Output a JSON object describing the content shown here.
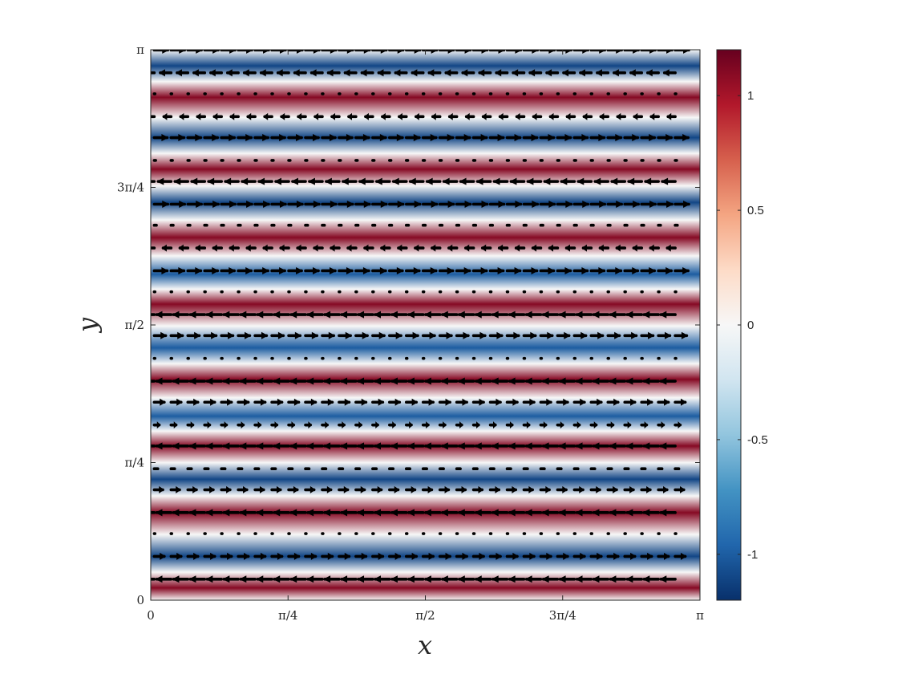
{
  "chart_data": {
    "type": "heatmap",
    "overlay": "quiver",
    "title": "",
    "xlabel": "x",
    "ylabel": "y",
    "xlim": [
      0,
      3.14159
    ],
    "ylim": [
      0,
      3.14159
    ],
    "x_ticks": [
      {
        "value": 0,
        "label": "0"
      },
      {
        "value": 0.7854,
        "label": "π/4"
      },
      {
        "value": 1.5708,
        "label": "π/2"
      },
      {
        "value": 2.3562,
        "label": "3π/4"
      },
      {
        "value": 3.14159,
        "label": "π"
      }
    ],
    "y_ticks": [
      {
        "value": 0,
        "label": "0"
      },
      {
        "value": 0.7854,
        "label": "π/4"
      },
      {
        "value": 1.5708,
        "label": "π/2"
      },
      {
        "value": 2.3562,
        "label": "3π/4"
      },
      {
        "value": 3.14159,
        "label": "π"
      }
    ],
    "colorbar": {
      "limits": [
        -1.2,
        1.2
      ],
      "ticks": [
        {
          "value": -1,
          "label": "-1"
        },
        {
          "value": -0.5,
          "label": "-0.5"
        },
        {
          "value": 0,
          "label": "0"
        },
        {
          "value": 0.5,
          "label": "0.5"
        },
        {
          "value": 1,
          "label": "1"
        }
      ],
      "colormap": [
        "#08306b",
        "#2166ac",
        "#4393c3",
        "#92c5de",
        "#d1e5f0",
        "#f7f7f7",
        "#fddbc7",
        "#f4a582",
        "#d6604d",
        "#b2182b",
        "#67001f"
      ]
    },
    "field": {
      "varies_along": "y",
      "profile": [
        {
          "y": 0.07,
          "value": 1.1
        },
        {
          "y": 0.25,
          "value": -1.1
        },
        {
          "y": 0.5,
          "value": 1.1
        },
        {
          "y": 0.69,
          "value": -1.1
        },
        {
          "y": 0.88,
          "value": 1.1
        },
        {
          "y": 1.05,
          "value": -1.0
        },
        {
          "y": 1.26,
          "value": 1.1
        },
        {
          "y": 1.44,
          "value": -1.0
        },
        {
          "y": 1.69,
          "value": 1.1
        },
        {
          "y": 1.86,
          "value": -1.0
        },
        {
          "y": 2.07,
          "value": 1.1
        },
        {
          "y": 2.27,
          "value": -1.1
        },
        {
          "y": 2.46,
          "value": 1.1
        },
        {
          "y": 2.64,
          "value": -1.1
        },
        {
          "y": 2.87,
          "value": 1.1
        },
        {
          "y": 3.05,
          "value": -1.1
        }
      ]
    },
    "quiver": {
      "x_start": 0.02,
      "x_end": 3.0,
      "columns": 32,
      "rows": [
        {
          "y": 0.12,
          "u": -1.0
        },
        {
          "y": 0.25,
          "u": 0.7
        },
        {
          "y": 0.38,
          "u": 0.05
        },
        {
          "y": 0.5,
          "u": -1.0
        },
        {
          "y": 0.63,
          "u": 0.6
        },
        {
          "y": 0.75,
          "u": 0.25
        },
        {
          "y": 0.88,
          "u": -1.0
        },
        {
          "y": 1.0,
          "u": 0.35
        },
        {
          "y": 1.13,
          "u": 0.7
        },
        {
          "y": 1.25,
          "u": -1.0
        },
        {
          "y": 1.38,
          "u": 0.05
        },
        {
          "y": 1.51,
          "u": 0.8
        },
        {
          "y": 1.63,
          "u": -1.0
        },
        {
          "y": 1.76,
          "u": 0.05
        },
        {
          "y": 1.88,
          "u": 0.9
        },
        {
          "y": 2.01,
          "u": -0.55
        },
        {
          "y": 2.14,
          "u": 0.15
        },
        {
          "y": 2.26,
          "u": 0.95
        },
        {
          "y": 2.39,
          "u": -0.9
        },
        {
          "y": 2.51,
          "u": 0.1
        },
        {
          "y": 2.64,
          "u": 0.9
        },
        {
          "y": 2.76,
          "u": -0.5
        },
        {
          "y": 2.89,
          "u": 0.05
        },
        {
          "y": 3.01,
          "u": -0.75
        },
        {
          "y": 3.14,
          "u": 0.95
        }
      ]
    }
  }
}
